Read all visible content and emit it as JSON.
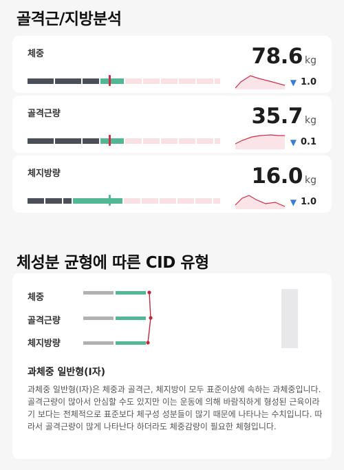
{
  "section1": {
    "title": "골격근/지방분석"
  },
  "metrics": [
    {
      "label": "체중",
      "value": "78.6",
      "unit": "kg",
      "delta": "1.0",
      "delta_direction": "down",
      "marker_color": "#d12b45",
      "line_color": "#e8a0a8"
    },
    {
      "label": "골격근량",
      "value": "35.7",
      "unit": "kg",
      "delta": "0.1",
      "delta_direction": "down",
      "marker_color": "#d12b45",
      "line_color": "#e8a0a8"
    },
    {
      "label": "체지방량",
      "value": "16.0",
      "unit": "kg",
      "delta": "1.0",
      "delta_direction": "down",
      "marker_color": "#52b794",
      "line_color": "#e8a0a8"
    }
  ],
  "section2": {
    "title": "체성분 균형에 따른 CID 유형"
  },
  "cid": {
    "rows": [
      {
        "label": "체중"
      },
      {
        "label": "골격근량"
      },
      {
        "label": "체지방량"
      }
    ],
    "type_title": "과체중 일반형(I자)",
    "description": "과체중 일반형(I자)은 체중과 골격근, 체지방이 모두 표준이상에 속하는 과체중입니다. 골격근량이 많아서 안심할 수도 있지만 이는 운동에 의해 바람직하게 형성된 근육이라기 보다는 전체적으로 표준보다 체구성 성분들이 많기 때문에 나타나는 수치입니다. 따라서 골격근량이 많게 나타난다 하더라도 체중감량이 필요한 체형입니다."
  },
  "colors": {
    "dark_segment": "#4a4f5a",
    "green_segment": "#52b794",
    "pink_segment": "#f8e0e3",
    "accent_red": "#d12b45",
    "down_arrow": "#3a7bd5"
  },
  "icons": {
    "delta_down": "triangle-down-icon"
  }
}
